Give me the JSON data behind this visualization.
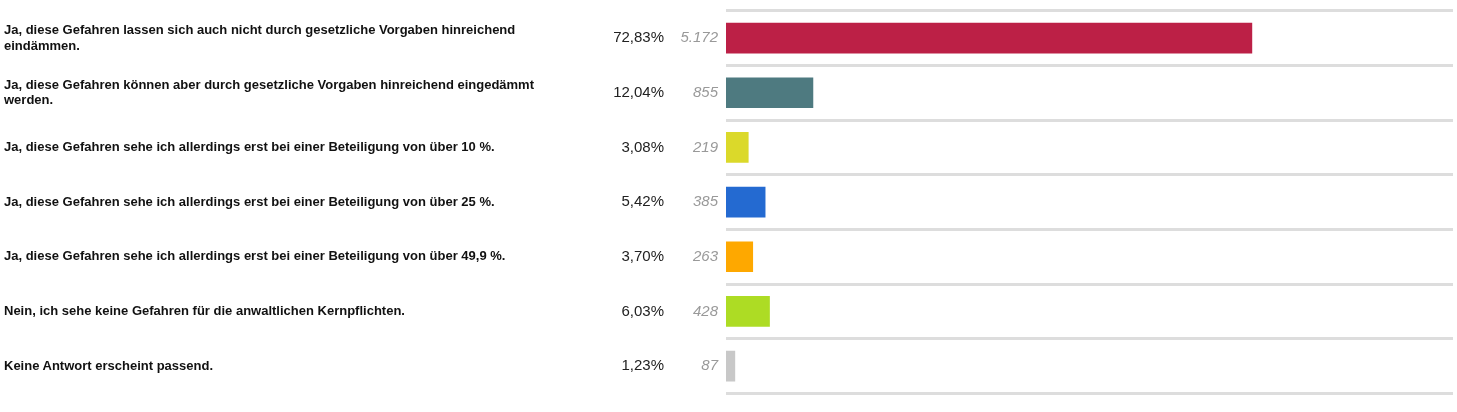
{
  "chart_data": {
    "type": "bar",
    "orientation": "horizontal",
    "categories": [
      "Ja, diese Gefahren lassen sich auch nicht durch gesetzliche Vorgaben hinreichend eindämmen.",
      "Ja, diese Gefahren können aber durch gesetzliche Vorgaben hinreichend eingedämmt werden.",
      "Ja, diese Gefahren sehe ich allerdings erst bei einer Beteiligung von über 10 %.",
      "Ja, diese Gefahren sehe ich allerdings erst bei einer Beteiligung von über 25 %.",
      "Ja, diese Gefahren sehe ich allerdings erst bei einer Beteiligung von über 49,9 %.",
      "Nein, ich sehe keine Gefahren für die anwaltlichen Kernpflichten.",
      "Keine Antwort erscheint passend."
    ],
    "values": [
      5172,
      855,
      219,
      385,
      263,
      428,
      87
    ],
    "value_labels": [
      "5.172",
      "855",
      "219",
      "385",
      "263",
      "428",
      "87"
    ],
    "colors": [
      "#bc2046",
      "#4e7a80",
      "#dbd92a",
      "#246ad1",
      "#fea800",
      "#addc24",
      "#c8c8c8"
    ],
    "xlim": [
      0,
      7150
    ],
    "tick_labels": "y",
    "grid": "y",
    "legend": false,
    "annotations": [
      "72,83%",
      "12,04%",
      "3,08%",
      "5,42%",
      "3,70%",
      "6,03%",
      "1,23%"
    ]
  }
}
